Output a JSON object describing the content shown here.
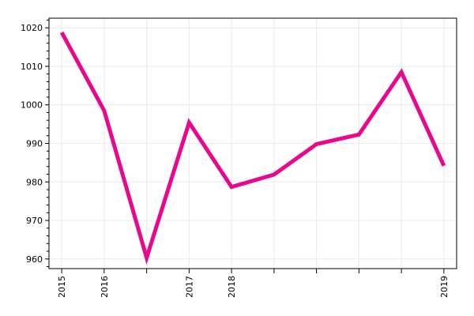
{
  "chart_data": {
    "type": "line",
    "title": "",
    "xlabel": "",
    "ylabel": "",
    "x": [
      0,
      1,
      2,
      3,
      4,
      5,
      6,
      7,
      8,
      9
    ],
    "series": [
      {
        "color": "#e8088e",
        "values": [
          1018.8,
          998.5,
          960.3,
          995.4,
          978.7,
          981.9,
          989.8,
          992.3,
          1008.5,
          984.2
        ]
      }
    ],
    "x_ticks": [
      {
        "x": 0,
        "label": "2015"
      },
      {
        "x": 1,
        "label": "2016"
      },
      {
        "x": 2,
        "label": ""
      },
      {
        "x": 3,
        "label": "2017"
      },
      {
        "x": 4,
        "label": "2018"
      },
      {
        "x": 5,
        "label": ""
      },
      {
        "x": 6,
        "label": ""
      },
      {
        "x": 7,
        "label": ""
      },
      {
        "x": 8,
        "label": ""
      },
      {
        "x": 9,
        "label": "2019"
      }
    ],
    "y_ticks": [
      960,
      970,
      980,
      990,
      1000,
      1010,
      1020
    ],
    "xlim": [
      -0.3,
      9.3
    ],
    "ylim": [
      957.5,
      1022.5
    ],
    "grid": true,
    "legend": "none"
  }
}
